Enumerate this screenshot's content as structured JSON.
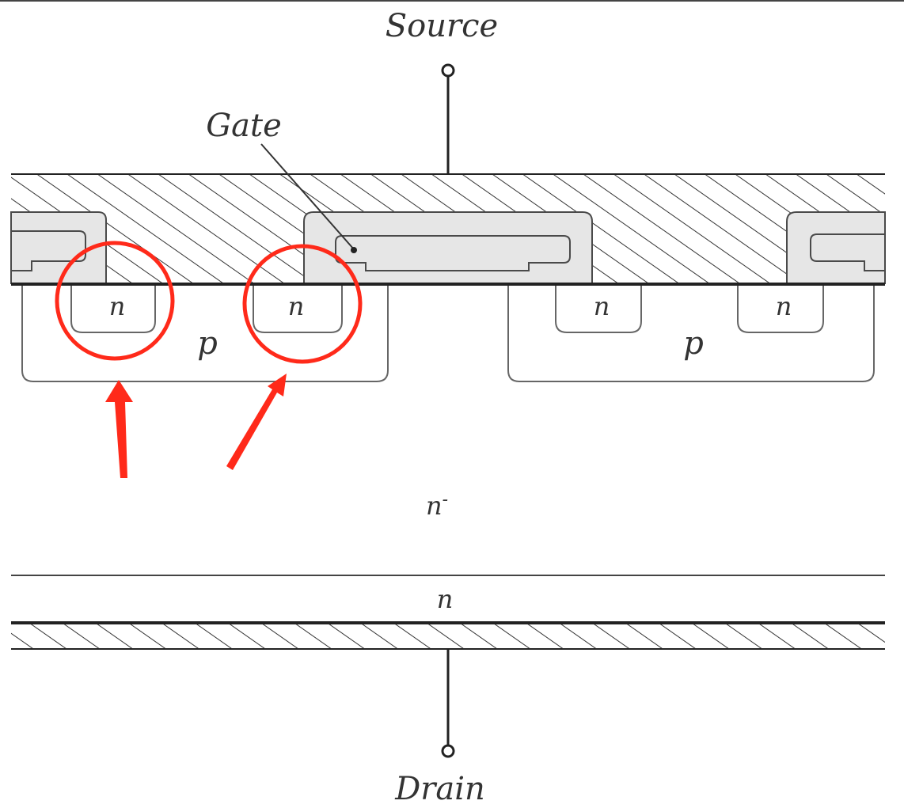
{
  "labels": {
    "source": "Source",
    "gate": "Gate",
    "drain": "Drain",
    "n_minus_base": "n",
    "n_minus_sup": "-",
    "n_buffer": "n",
    "n_regions": [
      "n",
      "n",
      "n",
      "n"
    ],
    "p_regions": [
      "p",
      "p"
    ]
  },
  "colors": {
    "annotation": "#ff2a1a",
    "metal_hatch": "#333333",
    "gate_fill": "#e6e6e6",
    "line": "#222222"
  }
}
